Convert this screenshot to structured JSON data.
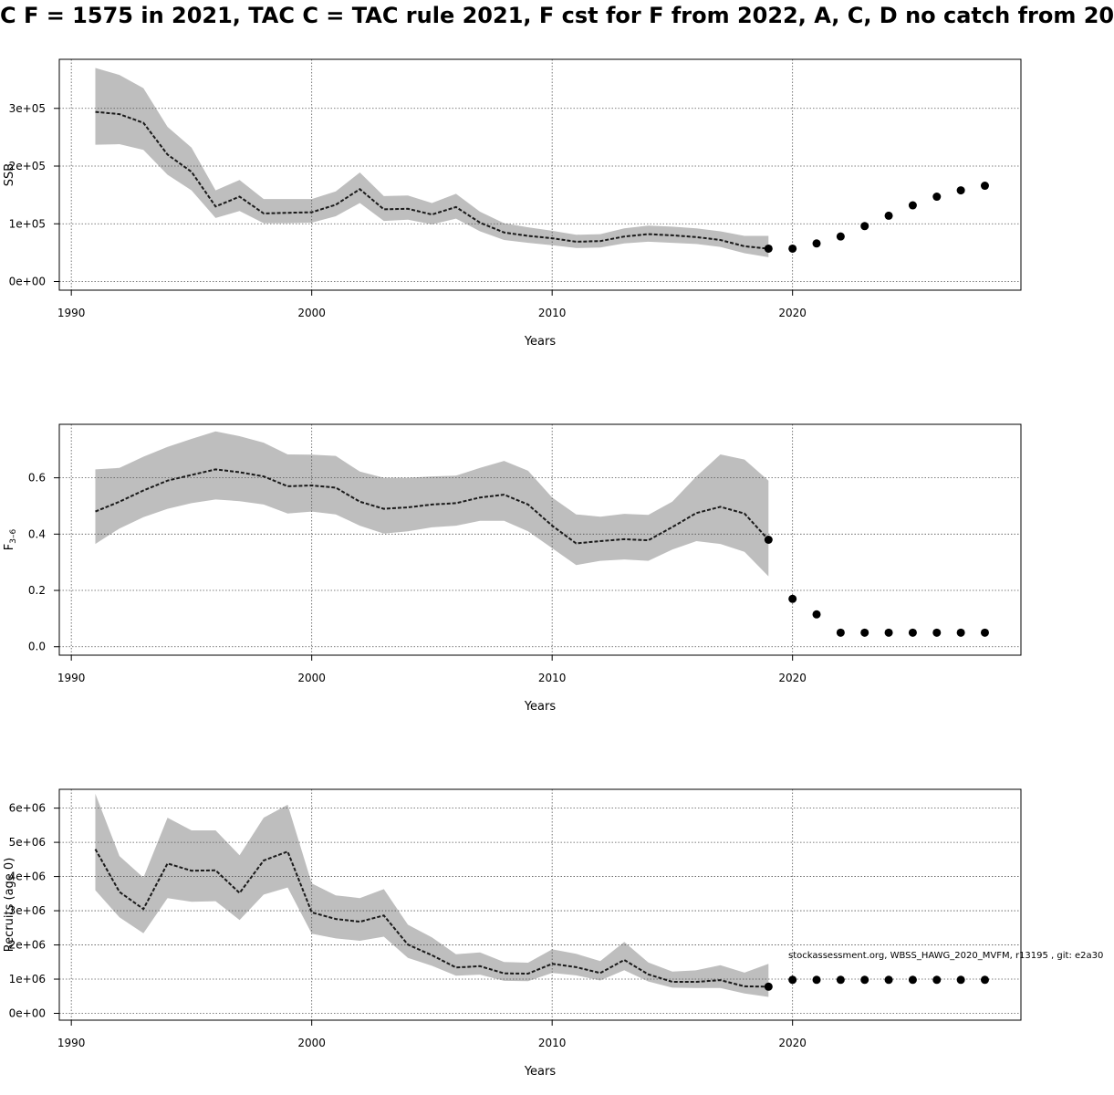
{
  "title": "C F = 1575 in 2021, TAC C = TAC rule 2021, F cst for F from 2022, A, C, D no catch from 20",
  "footnote": "stockassessment.org, WBSS_HAWG_2020_MVFM, r13195 , git: e2a30",
  "colors": {
    "band": "#bebebe",
    "line": "#1a1a1a",
    "point": "#000000",
    "grid": "#555555"
  },
  "chart_data": [
    {
      "type": "line",
      "ylabel": "SSB",
      "xlabel": "Years",
      "xlim": [
        1989.5,
        2029.5
      ],
      "ylim": [
        -15000,
        385000
      ],
      "xticks": [
        1990,
        2000,
        2010,
        2020
      ],
      "yticks": [
        0,
        100000,
        200000,
        300000
      ],
      "ytick_labels": [
        "0e+00",
        "1e+05",
        "2e+05",
        "3e+05"
      ],
      "grid": true,
      "x": [
        1991,
        1992,
        1993,
        1994,
        1995,
        1996,
        1997,
        1998,
        1999,
        2000,
        2001,
        2002,
        2003,
        2004,
        2005,
        2006,
        2007,
        2008,
        2009,
        2010,
        2011,
        2012,
        2013,
        2014,
        2015,
        2016,
        2017,
        2018,
        2019
      ],
      "estimate": [
        294000,
        290000,
        275000,
        220000,
        190000,
        130000,
        147000,
        118000,
        119000,
        120000,
        133000,
        160000,
        125000,
        126000,
        116000,
        129000,
        102000,
        85000,
        79000,
        75000,
        69000,
        70000,
        78000,
        82000,
        80000,
        77000,
        72000,
        61000,
        57000
      ],
      "lower": [
        237000,
        238000,
        228000,
        185000,
        158000,
        110000,
        122000,
        101000,
        101000,
        102000,
        113000,
        136000,
        105000,
        107000,
        99000,
        109000,
        87000,
        72000,
        67000,
        63000,
        58000,
        59000,
        66000,
        69000,
        67000,
        65000,
        60000,
        49000,
        42000
      ],
      "upper": [
        370000,
        358000,
        335000,
        268000,
        232000,
        158000,
        176000,
        143000,
        143000,
        143000,
        156000,
        189000,
        148000,
        149000,
        136000,
        152000,
        121000,
        101000,
        94000,
        88000,
        81000,
        82000,
        92000,
        97000,
        95000,
        92000,
        87000,
        79000,
        79000
      ],
      "forecast": {
        "x": [
          2019,
          2020,
          2021,
          2022,
          2023,
          2024,
          2025,
          2026,
          2027,
          2028
        ],
        "y": [
          57000,
          57000,
          66000,
          78000,
          96000,
          114000,
          132000,
          147000,
          158000,
          166000
        ]
      }
    },
    {
      "type": "line",
      "ylabel": "F3-6",
      "ylabel_main": "F",
      "ylabel_sub": "3–6",
      "xlabel": "Years",
      "xlim": [
        1989.5,
        2029.5
      ],
      "ylim": [
        -0.03,
        0.79
      ],
      "xticks": [
        1990,
        2000,
        2010,
        2020
      ],
      "yticks": [
        0,
        0.2,
        0.4,
        0.6
      ],
      "ytick_labels": [
        "0.0",
        "0.2",
        "0.4",
        "0.6"
      ],
      "grid": true,
      "x": [
        1991,
        1992,
        1993,
        1994,
        1995,
        1996,
        1997,
        1998,
        1999,
        2000,
        2001,
        2002,
        2003,
        2004,
        2005,
        2006,
        2007,
        2008,
        2009,
        2010,
        2011,
        2012,
        2013,
        2014,
        2015,
        2016,
        2017,
        2018,
        2019
      ],
      "estimate": [
        0.48,
        0.515,
        0.555,
        0.59,
        0.61,
        0.63,
        0.62,
        0.605,
        0.57,
        0.573,
        0.565,
        0.515,
        0.49,
        0.495,
        0.505,
        0.51,
        0.53,
        0.54,
        0.505,
        0.43,
        0.367,
        0.375,
        0.382,
        0.378,
        0.425,
        0.475,
        0.497,
        0.473,
        0.38
      ],
      "lower": [
        0.365,
        0.42,
        0.46,
        0.49,
        0.51,
        0.523,
        0.517,
        0.505,
        0.473,
        0.48,
        0.47,
        0.43,
        0.402,
        0.41,
        0.424,
        0.43,
        0.447,
        0.447,
        0.41,
        0.35,
        0.29,
        0.305,
        0.31,
        0.305,
        0.345,
        0.375,
        0.365,
        0.337,
        0.25
      ],
      "upper": [
        0.63,
        0.635,
        0.675,
        0.71,
        0.738,
        0.765,
        0.748,
        0.725,
        0.683,
        0.682,
        0.678,
        0.622,
        0.6,
        0.6,
        0.605,
        0.608,
        0.635,
        0.66,
        0.625,
        0.53,
        0.47,
        0.462,
        0.472,
        0.468,
        0.515,
        0.605,
        0.683,
        0.665,
        0.59
      ],
      "forecast": {
        "x": [
          2019,
          2020,
          2021,
          2022,
          2023,
          2024,
          2025,
          2026,
          2027,
          2028
        ],
        "y": [
          0.38,
          0.17,
          0.115,
          0.05,
          0.05,
          0.05,
          0.05,
          0.05,
          0.05,
          0.05
        ]
      }
    },
    {
      "type": "line",
      "ylabel": "Recruits (age 0)",
      "xlabel": "Years",
      "xlim": [
        1989.5,
        2029.5
      ],
      "ylim": [
        -200000,
        6550000
      ],
      "xticks": [
        1990,
        2000,
        2010,
        2020
      ],
      "yticks": [
        0,
        1000000,
        2000000,
        3000000,
        4000000,
        5000000,
        6000000
      ],
      "ytick_labels": [
        "0e+00",
        "1e+06",
        "2e+06",
        "3e+06",
        "4e+06",
        "5e+06",
        "6e+06"
      ],
      "grid": true,
      "x": [
        1991,
        1992,
        1993,
        1994,
        1995,
        1996,
        1997,
        1998,
        1999,
        2000,
        2001,
        2002,
        2003,
        2004,
        2005,
        2006,
        2007,
        2008,
        2009,
        2010,
        2011,
        2012,
        2013,
        2014,
        2015,
        2016,
        2017,
        2018,
        2019
      ],
      "estimate": [
        4800000,
        3550000,
        3050000,
        4380000,
        4170000,
        4180000,
        3520000,
        4470000,
        4730000,
        2950000,
        2760000,
        2680000,
        2860000,
        2010000,
        1700000,
        1340000,
        1380000,
        1170000,
        1160000,
        1450000,
        1350000,
        1180000,
        1560000,
        1140000,
        920000,
        920000,
        970000,
        790000,
        780000
      ],
      "lower": [
        3600000,
        2810000,
        2340000,
        3370000,
        3260000,
        3280000,
        2730000,
        3470000,
        3680000,
        2330000,
        2190000,
        2120000,
        2240000,
        1620000,
        1390000,
        1100000,
        1130000,
        950000,
        940000,
        1180000,
        1110000,
        960000,
        1260000,
        930000,
        750000,
        740000,
        740000,
        580000,
        480000
      ],
      "upper": [
        6420000,
        4600000,
        3970000,
        5720000,
        5350000,
        5350000,
        4620000,
        5720000,
        6100000,
        3800000,
        3450000,
        3370000,
        3630000,
        2590000,
        2220000,
        1730000,
        1780000,
        1500000,
        1480000,
        1870000,
        1740000,
        1530000,
        2090000,
        1490000,
        1220000,
        1260000,
        1410000,
        1190000,
        1450000
      ],
      "forecast": {
        "x": [
          2019,
          2020,
          2021,
          2022,
          2023,
          2024,
          2025,
          2026,
          2027,
          2028
        ],
        "y": [
          780000,
          980000,
          980000,
          980000,
          980000,
          980000,
          980000,
          980000,
          980000,
          980000
        ]
      }
    }
  ]
}
